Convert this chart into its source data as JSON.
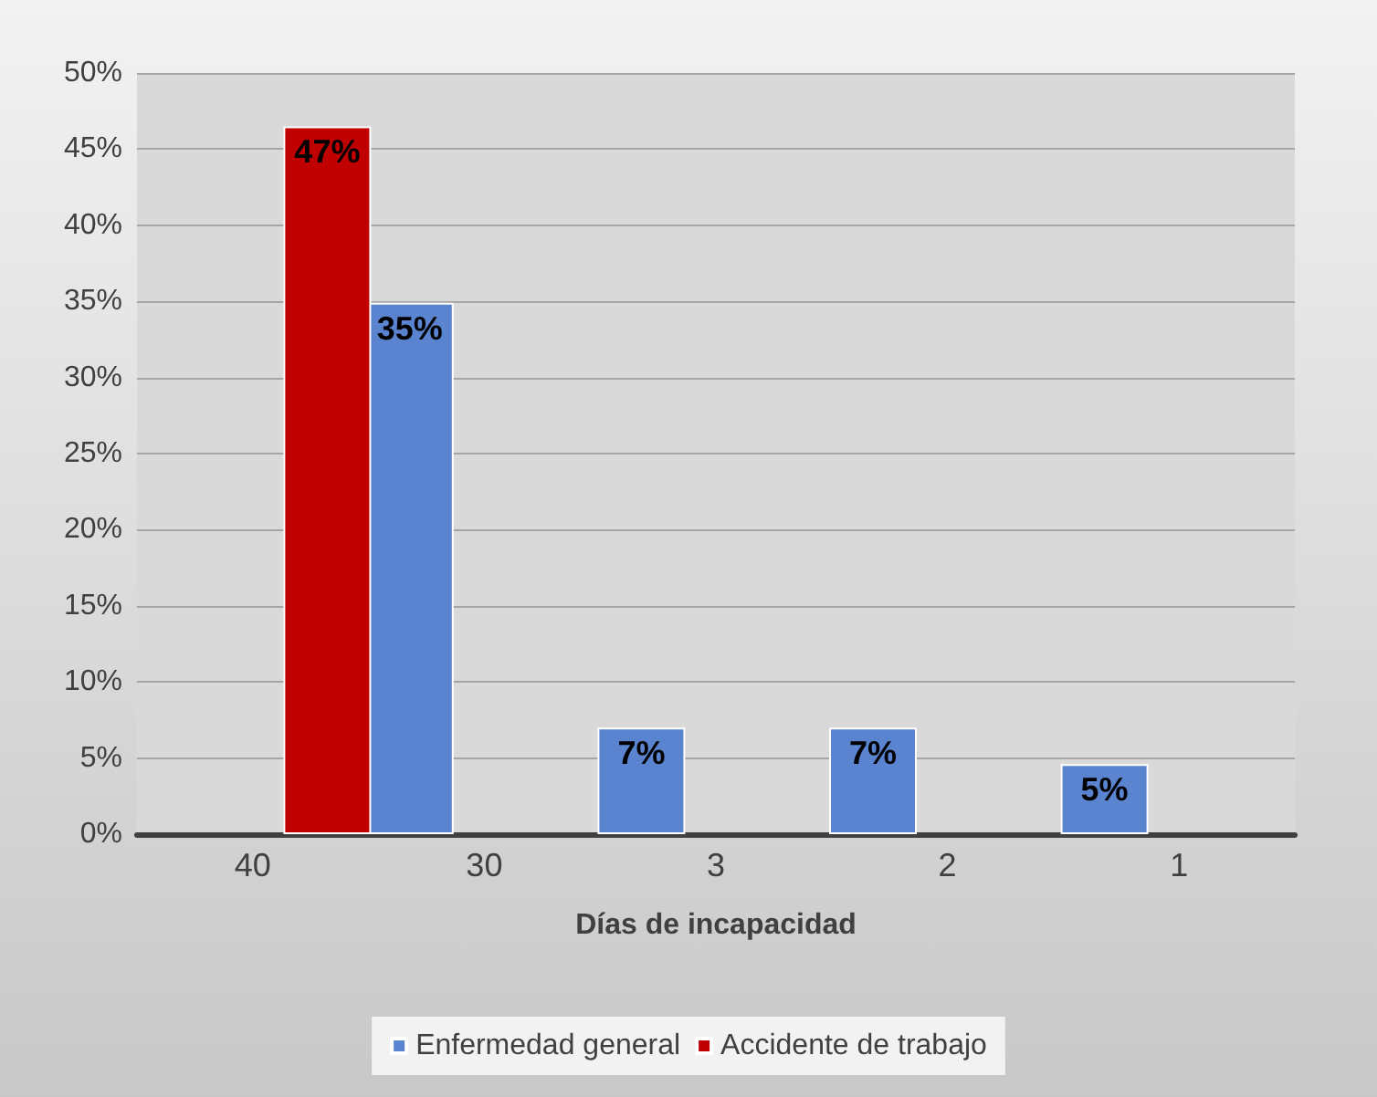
{
  "chart_data": {
    "type": "bar",
    "xlabel": "Días de incapacidad",
    "categories": [
      "40",
      "30",
      "3",
      "2",
      "1"
    ],
    "series": [
      {
        "name": "Enfermedad general",
        "color": "#5b84d0",
        "values": [
          null,
          34.9,
          7,
          7,
          4.6
        ],
        "value_labels": [
          null,
          "35%",
          "7%",
          "7%",
          "5%"
        ]
      },
      {
        "name": "Accidente de trabajo",
        "color": "#c00000",
        "values": [
          46.5,
          null,
          null,
          null,
          null
        ],
        "value_labels": [
          "47%",
          null,
          null,
          null,
          null
        ]
      }
    ],
    "ylim": [
      0,
      50
    ],
    "yticks": [
      {
        "value": 0,
        "label": "0%"
      },
      {
        "value": 5,
        "label": "5%"
      },
      {
        "value": 10,
        "label": "10%"
      },
      {
        "value": 15,
        "label": "15%"
      },
      {
        "value": 20,
        "label": "20%"
      },
      {
        "value": 25,
        "label": "25%"
      },
      {
        "value": 30,
        "label": "30%"
      },
      {
        "value": 35,
        "label": "35%"
      },
      {
        "value": 40,
        "label": "40%"
      },
      {
        "value": 45,
        "label": "45%"
      },
      {
        "value": 50,
        "label": "50%"
      }
    ],
    "grid": "y",
    "legend": "bottom"
  }
}
